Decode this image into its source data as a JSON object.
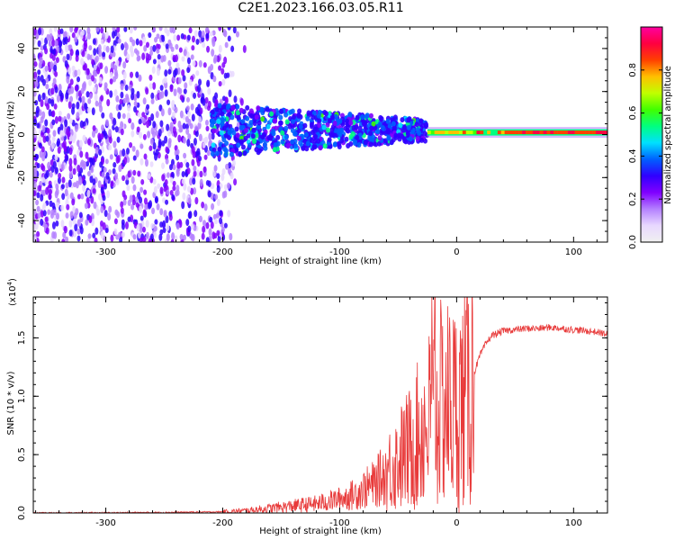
{
  "title": "C2E1.2023.166.03.05.R11",
  "colors": {
    "axis": "#000000",
    "snr_line": "#e83a3a",
    "colorbar_stops": [
      "#f0f0f0",
      "#e8d8ff",
      "#b480ff",
      "#8000ff",
      "#3000ff",
      "#0060ff",
      "#00e0ff",
      "#00ff80",
      "#40ff00",
      "#c0ff00",
      "#ffc000",
      "#ff4000",
      "#ff0040",
      "#ff00a0"
    ]
  },
  "chart_data": [
    {
      "type": "heatmap",
      "name": "spectrogram",
      "title": "C2E1.2023.166.03.05.R11",
      "xlabel": "Height of straight line (km)",
      "ylabel": "Frequency (Hz)",
      "xlim": [
        -362,
        129
      ],
      "ylim": [
        -50,
        50
      ],
      "xticks": [
        -300,
        -200,
        -100,
        0,
        100
      ],
      "xtick_labels": [
        "-300",
        "-200",
        "-100",
        "0",
        "100"
      ],
      "yticks": [
        -40,
        -20,
        0,
        20,
        40
      ],
      "ytick_labels": [
        "-40",
        "-20",
        "0",
        "20",
        "40"
      ],
      "colorbar": {
        "label": "Normalized spectral amplitude",
        "range": [
          0.0,
          1.0
        ],
        "ticks": [
          0.0,
          0.2,
          0.4,
          0.6,
          0.8
        ],
        "tick_labels": [
          "0.0",
          "0.2",
          "0.4",
          "0.6",
          "0.8"
        ]
      },
      "features": [
        {
          "x_start": -362,
          "x_end": -180,
          "description": "broadband noise filling all frequencies"
        },
        {
          "x_start": -210,
          "x_end": -25,
          "freq_center": 2,
          "freq_halfwidth_start": 12,
          "freq_halfwidth_end": 5,
          "description": "blue/cyan band narrowing toward 0 Hz"
        },
        {
          "x_start": -25,
          "x_end": 129,
          "freq_center": 1,
          "description": "narrow high-amplitude carrier line (green to red)"
        }
      ]
    },
    {
      "type": "line",
      "name": "snr",
      "xlabel": "Height of straight line (km)",
      "ylabel": "SNR (10 * v/v)",
      "y_multiplier": "(x10^4)",
      "y_multiplier_base": "(x10",
      "y_multiplier_exp": "4",
      "y_multiplier_close": ")",
      "xlim": [
        -362,
        129
      ],
      "ylim": [
        0.0,
        1.85
      ],
      "xticks": [
        -300,
        -200,
        -100,
        0,
        100
      ],
      "xtick_labels": [
        "-300",
        "-200",
        "-100",
        "0",
        "100"
      ],
      "yticks": [
        0.0,
        0.5,
        1.0,
        1.5
      ],
      "ytick_labels": [
        "0.0",
        "0.5",
        "1.0",
        "1.5"
      ],
      "series": [
        {
          "name": "SNR",
          "x": [
            -362,
            -300,
            -250,
            -200,
            -190,
            -180,
            -170,
            -160,
            -150,
            -140,
            -130,
            -120,
            -110,
            -100,
            -90,
            -80,
            -70,
            -60,
            -50,
            -40,
            -30,
            -20,
            -10,
            0,
            5,
            10,
            15,
            20,
            25,
            30,
            40,
            50,
            60,
            70,
            80,
            90,
            100,
            110,
            120,
            129
          ],
          "y": [
            0.0,
            0.002,
            0.005,
            0.01,
            0.015,
            0.02,
            0.03,
            0.04,
            0.05,
            0.06,
            0.07,
            0.08,
            0.1,
            0.12,
            0.15,
            0.2,
            0.25,
            0.35,
            0.45,
            0.55,
            0.7,
            0.85,
            0.95,
            0.9,
            0.95,
            1.05,
            1.2,
            1.35,
            1.45,
            1.52,
            1.56,
            1.57,
            1.58,
            1.58,
            1.59,
            1.58,
            1.57,
            1.56,
            1.55,
            1.53
          ]
        }
      ],
      "annotations": [
        {
          "x": -20,
          "y": 1.85,
          "text": "spike reaching top of axis"
        }
      ]
    }
  ]
}
